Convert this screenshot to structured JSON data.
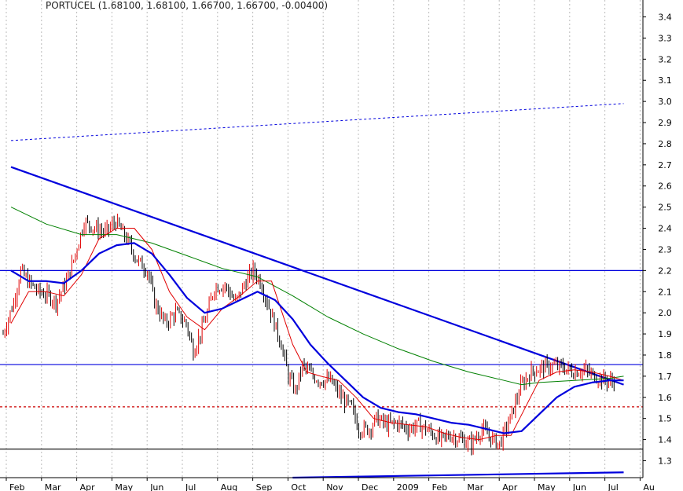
{
  "title": "PORTUCEL (1.68100, 1.68100, 1.66700, 1.66700, -0.00400)",
  "chart_data": {
    "type": "candlestick",
    "ylim": [
      1.22,
      3.48
    ],
    "y_ticks": [
      1.3,
      1.4,
      1.5,
      1.6,
      1.7,
      1.8,
      1.9,
      2.0,
      2.1,
      2.2,
      2.3,
      2.4,
      2.5,
      2.6,
      2.7,
      2.8,
      2.9,
      3.0,
      3.1,
      3.2,
      3.3,
      3.4
    ],
    "y_tick_labels": [
      "1.3",
      "1.4",
      "1.5",
      "1.6",
      "1.7",
      "1.8",
      "1.9",
      "2.0",
      "2.1",
      "2.2",
      "2.3",
      "2.4",
      "2.5",
      "2.6",
      "2.7",
      "2.8",
      "2.9",
      "3.0",
      "3.1",
      "3.2",
      "3.3",
      "3.4"
    ],
    "x_labels": [
      "Feb",
      "Mar",
      "Apr",
      "May",
      "Jun",
      "Jul",
      "Aug",
      "Sep",
      "Oct",
      "Nov",
      "Dec",
      "2009",
      "Feb",
      "Mar",
      "Apr",
      "May",
      "Jun",
      "Jul",
      "Au"
    ],
    "x_label_positions": [
      0.0,
      1.0,
      2.0,
      3.0,
      4.0,
      5.0,
      6.0,
      7.0,
      8.0,
      9.0,
      10.0,
      11.0,
      12.0,
      13.0,
      14.0,
      15.0,
      16.0,
      17.0,
      18.0
    ],
    "grid": "vertical-dotted",
    "colors": {
      "up": "#e00000",
      "down": "#000000",
      "ma_short": "#e00000",
      "ma_mid": "#0000dd",
      "ma_long": "#008000",
      "trend": "#0000dd",
      "support": "#000000",
      "dashed_red": "#cc0000"
    },
    "price_path": [
      [
        0.0,
        1.9
      ],
      [
        0.3,
        2.05
      ],
      [
        0.5,
        2.2
      ],
      [
        0.7,
        2.15
      ],
      [
        1.0,
        2.1
      ],
      [
        1.3,
        2.08
      ],
      [
        1.5,
        2.05
      ],
      [
        1.8,
        2.15
      ],
      [
        2.0,
        2.25
      ],
      [
        2.3,
        2.43
      ],
      [
        2.6,
        2.4
      ],
      [
        2.9,
        2.38
      ],
      [
        3.2,
        2.43
      ],
      [
        3.5,
        2.35
      ],
      [
        3.8,
        2.25
      ],
      [
        4.1,
        2.2
      ],
      [
        4.3,
        2.05
      ],
      [
        4.6,
        1.95
      ],
      [
        4.9,
        2.0
      ],
      [
        5.2,
        1.95
      ],
      [
        5.4,
        1.82
      ],
      [
        5.6,
        1.9
      ],
      [
        5.8,
        2.0
      ],
      [
        6.0,
        2.12
      ],
      [
        6.3,
        2.13
      ],
      [
        6.6,
        2.05
      ],
      [
        6.9,
        2.15
      ],
      [
        7.1,
        2.2
      ],
      [
        7.3,
        2.15
      ],
      [
        7.5,
        2.05
      ],
      [
        7.7,
        1.95
      ],
      [
        7.9,
        1.85
      ],
      [
        8.1,
        1.7
      ],
      [
        8.3,
        1.63
      ],
      [
        8.5,
        1.75
      ],
      [
        8.8,
        1.7
      ],
      [
        9.0,
        1.68
      ],
      [
        9.3,
        1.68
      ],
      [
        9.6,
        1.6
      ],
      [
        9.9,
        1.55
      ],
      [
        10.1,
        1.45
      ],
      [
        10.4,
        1.45
      ],
      [
        10.6,
        1.5
      ],
      [
        10.9,
        1.47
      ],
      [
        11.2,
        1.48
      ],
      [
        11.5,
        1.45
      ],
      [
        11.8,
        1.47
      ],
      [
        12.1,
        1.44
      ],
      [
        12.4,
        1.4
      ],
      [
        12.7,
        1.42
      ],
      [
        13.0,
        1.4
      ],
      [
        13.3,
        1.38
      ],
      [
        13.6,
        1.45
      ],
      [
        13.9,
        1.4
      ],
      [
        14.1,
        1.38
      ],
      [
        14.4,
        1.5
      ],
      [
        14.7,
        1.65
      ],
      [
        15.0,
        1.72
      ],
      [
        15.3,
        1.74
      ],
      [
        15.6,
        1.75
      ],
      [
        15.9,
        1.74
      ],
      [
        16.2,
        1.72
      ],
      [
        16.5,
        1.73
      ],
      [
        16.8,
        1.7
      ],
      [
        17.1,
        1.68
      ],
      [
        17.4,
        1.67
      ]
    ],
    "ma_short": [
      [
        0.0,
        1.95
      ],
      [
        0.5,
        2.1
      ],
      [
        1.0,
        2.1
      ],
      [
        1.5,
        2.08
      ],
      [
        2.0,
        2.18
      ],
      [
        2.5,
        2.35
      ],
      [
        3.0,
        2.4
      ],
      [
        3.5,
        2.4
      ],
      [
        4.0,
        2.3
      ],
      [
        4.5,
        2.1
      ],
      [
        5.0,
        1.98
      ],
      [
        5.5,
        1.92
      ],
      [
        6.0,
        2.02
      ],
      [
        6.5,
        2.08
      ],
      [
        7.0,
        2.15
      ],
      [
        7.4,
        2.15
      ],
      [
        7.7,
        2.0
      ],
      [
        8.0,
        1.85
      ],
      [
        8.4,
        1.72
      ],
      [
        8.8,
        1.7
      ],
      [
        9.3,
        1.68
      ],
      [
        9.8,
        1.6
      ],
      [
        10.3,
        1.5
      ],
      [
        10.8,
        1.48
      ],
      [
        11.3,
        1.47
      ],
      [
        11.8,
        1.46
      ],
      [
        12.3,
        1.43
      ],
      [
        12.8,
        1.41
      ],
      [
        13.3,
        1.4
      ],
      [
        13.8,
        1.42
      ],
      [
        14.2,
        1.42
      ],
      [
        14.6,
        1.55
      ],
      [
        15.0,
        1.68
      ],
      [
        15.5,
        1.72
      ],
      [
        16.0,
        1.73
      ],
      [
        16.5,
        1.72
      ],
      [
        17.0,
        1.7
      ],
      [
        17.4,
        1.68
      ]
    ],
    "ma_mid": [
      [
        0.0,
        2.2
      ],
      [
        0.5,
        2.15
      ],
      [
        1.0,
        2.15
      ],
      [
        1.5,
        2.14
      ],
      [
        2.0,
        2.2
      ],
      [
        2.5,
        2.28
      ],
      [
        3.0,
        2.32
      ],
      [
        3.5,
        2.33
      ],
      [
        4.0,
        2.28
      ],
      [
        4.5,
        2.18
      ],
      [
        5.0,
        2.07
      ],
      [
        5.5,
        2.0
      ],
      [
        6.0,
        2.02
      ],
      [
        6.5,
        2.06
      ],
      [
        7.0,
        2.1
      ],
      [
        7.5,
        2.06
      ],
      [
        8.0,
        1.97
      ],
      [
        8.5,
        1.85
      ],
      [
        9.0,
        1.76
      ],
      [
        9.5,
        1.68
      ],
      [
        10.0,
        1.6
      ],
      [
        10.5,
        1.55
      ],
      [
        11.0,
        1.53
      ],
      [
        11.5,
        1.52
      ],
      [
        12.0,
        1.5
      ],
      [
        12.5,
        1.48
      ],
      [
        13.0,
        1.47
      ],
      [
        13.5,
        1.45
      ],
      [
        14.0,
        1.43
      ],
      [
        14.5,
        1.44
      ],
      [
        15.0,
        1.52
      ],
      [
        15.5,
        1.6
      ],
      [
        16.0,
        1.65
      ],
      [
        16.5,
        1.67
      ],
      [
        17.0,
        1.68
      ],
      [
        17.4,
        1.68
      ]
    ],
    "ma_long": [
      [
        0.0,
        2.5
      ],
      [
        1.0,
        2.42
      ],
      [
        2.0,
        2.37
      ],
      [
        3.0,
        2.37
      ],
      [
        4.0,
        2.33
      ],
      [
        5.0,
        2.27
      ],
      [
        6.0,
        2.21
      ],
      [
        7.0,
        2.17
      ],
      [
        8.0,
        2.08
      ],
      [
        9.0,
        1.98
      ],
      [
        10.0,
        1.9
      ],
      [
        11.0,
        1.83
      ],
      [
        12.0,
        1.77
      ],
      [
        13.0,
        1.72
      ],
      [
        14.0,
        1.68
      ],
      [
        14.5,
        1.66
      ],
      [
        15.0,
        1.67
      ],
      [
        16.0,
        1.68
      ],
      [
        17.0,
        1.69
      ],
      [
        17.4,
        1.7
      ]
    ],
    "trendlines": [
      {
        "from": [
          0.0,
          2.69
        ],
        "to": [
          17.4,
          1.66
        ],
        "style": "solid",
        "color": "#0000dd",
        "width": 2.2
      },
      {
        "from": [
          8.0,
          1.22
        ],
        "to": [
          17.4,
          1.245
        ],
        "style": "solid",
        "color": "#0000dd",
        "width": 2.2
      },
      {
        "from": [
          0.0,
          2.815
        ],
        "to": [
          17.4,
          2.99
        ],
        "style": "dotted",
        "color": "#0000dd",
        "width": 1
      }
    ],
    "hlines": [
      {
        "y": 2.2,
        "color": "#0000dd",
        "style": "solid"
      },
      {
        "y": 1.755,
        "color": "#0000dd",
        "style": "solid"
      },
      {
        "y": 1.555,
        "color": "#cc0000",
        "style": "dashed"
      },
      {
        "y": 1.355,
        "color": "#000000",
        "style": "solid"
      }
    ]
  }
}
